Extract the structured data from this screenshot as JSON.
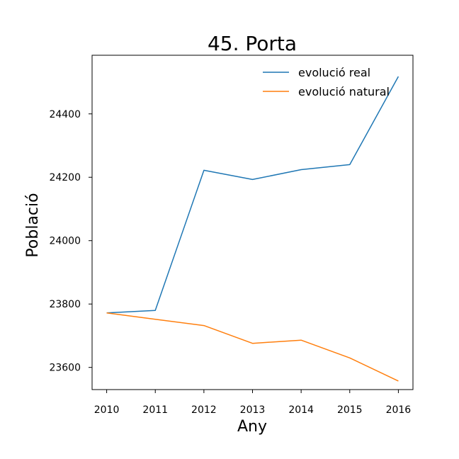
{
  "chart_data": {
    "type": "line",
    "title": "45. Porta",
    "xlabel": "Any",
    "ylabel": "Població",
    "x": [
      2010,
      2011,
      2012,
      2013,
      2014,
      2015,
      2016
    ],
    "x_ticks": [
      "2010",
      "2011",
      "2012",
      "2013",
      "2014",
      "2015",
      "2016"
    ],
    "y_ticks": [
      23600,
      23800,
      24000,
      24200,
      24400
    ],
    "xlim": [
      2009.7,
      2016.3
    ],
    "ylim": [
      23530,
      24585
    ],
    "grid": false,
    "legend_position": "top-right",
    "series": [
      {
        "name": "evolució real",
        "color": "#1f77b4",
        "values": [
          23772,
          23780,
          24222,
          24193,
          24224,
          24240,
          24518
        ]
      },
      {
        "name": "evolució natural",
        "color": "#ff7f0e",
        "values": [
          23772,
          23752,
          23732,
          23676,
          23686,
          23630,
          23557
        ]
      }
    ]
  }
}
